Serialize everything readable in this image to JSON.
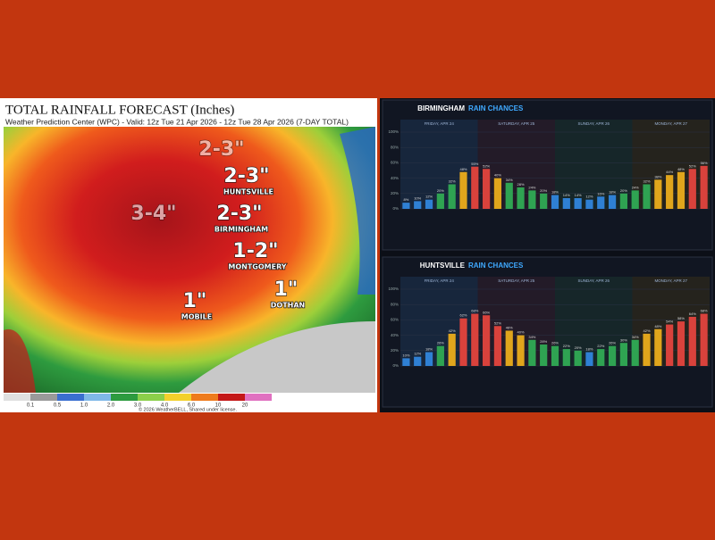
{
  "map": {
    "title": "TOTAL RAINFALL FORECAST (Inches)",
    "subtitle": "Weather Prediction Center (WPC) - Valid: 12z Tue 21 Apr 2026 - 12z Tue 28 Apr 2026 (7-DAY TOTAL)",
    "amounts": [
      {
        "text": "2-3\"",
        "city": null
      },
      {
        "text": "2-3\"",
        "city": "HUNTSVILLE"
      },
      {
        "text": "3-4\"",
        "city": null
      },
      {
        "text": "2-3\"",
        "city": "BIRMINGHAM"
      },
      {
        "text": "1-2\"",
        "city": "MONTGOMERY"
      },
      {
        "text": "1\"",
        "city": "MOBILE"
      },
      {
        "text": "1\"",
        "city": "DOTHAN"
      }
    ],
    "scale": [
      "0.1",
      "0.5",
      "1.0",
      "2.0",
      "3.0",
      "4.0",
      "6.0",
      "10",
      "20"
    ],
    "credit": "© 2026 WeatherBELL, Shared under license."
  },
  "charts": [
    {
      "type": "bar",
      "city": "BIRMINGHAM",
      "title": "RAIN CHANCES",
      "days": [
        "FRIDAY, APR 24",
        "SATURDAY, APR 25",
        "SUNDAY, APR 26",
        "MONDAY, APR 27"
      ],
      "values": [
        8,
        10,
        12,
        20,
        32,
        48,
        55,
        52,
        40,
        34,
        28,
        24,
        20,
        18,
        14,
        14,
        12,
        16,
        18,
        20,
        24,
        32,
        38,
        44,
        48,
        52,
        56
      ],
      "value_labels": [
        "8%",
        "10%",
        "12%",
        "20%",
        "32%",
        "48%",
        "55%",
        "52%",
        "40%",
        "34%",
        "28%",
        "24%",
        "20%",
        "18%",
        "14%",
        "14%",
        "12%",
        "16%",
        "18%",
        "20%",
        "24%",
        "32%",
        "38%",
        "44%",
        "48%",
        "52%",
        "56%"
      ],
      "ylim": [
        0,
        100
      ],
      "yticks": [
        {
          "value": 0,
          "label": "0%"
        },
        {
          "value": 20,
          "label": "20%"
        },
        {
          "value": 40,
          "label": "40%"
        },
        {
          "value": 60,
          "label": "60%"
        },
        {
          "value": 80,
          "label": "80%"
        },
        {
          "value": 100,
          "label": "100%"
        }
      ]
    },
    {
      "type": "bar",
      "city": "HUNTSVILLE",
      "title": "RAIN CHANCES",
      "days": [
        "FRIDAY, APR 24",
        "SATURDAY, APR 25",
        "SUNDAY, APR 26",
        "MONDAY, APR 27"
      ],
      "values": [
        10,
        12,
        18,
        26,
        42,
        62,
        68,
        66,
        52,
        46,
        40,
        34,
        28,
        26,
        22,
        20,
        18,
        22,
        26,
        30,
        34,
        42,
        48,
        54,
        58,
        64,
        68
      ],
      "value_labels": [
        "10%",
        "12%",
        "18%",
        "26%",
        "42%",
        "62%",
        "68%",
        "66%",
        "52%",
        "46%",
        "40%",
        "34%",
        "28%",
        "26%",
        "22%",
        "20%",
        "18%",
        "22%",
        "26%",
        "30%",
        "34%",
        "42%",
        "48%",
        "54%",
        "58%",
        "64%",
        "68%"
      ],
      "ylim": [
        0,
        100
      ],
      "yticks": [
        {
          "value": 0,
          "label": "0%"
        },
        {
          "value": 20,
          "label": "20%"
        },
        {
          "value": 40,
          "label": "40%"
        },
        {
          "value": 60,
          "label": "60%"
        },
        {
          "value": 80,
          "label": "80%"
        },
        {
          "value": 100,
          "label": "100%"
        }
      ]
    }
  ],
  "color_scale": [
    {
      "min": 0,
      "color": "#2f80d4"
    },
    {
      "min": 20,
      "color": "#2fa352"
    },
    {
      "min": 38,
      "color": "#e0a51c"
    },
    {
      "min": 50,
      "color": "#d9423c"
    }
  ]
}
